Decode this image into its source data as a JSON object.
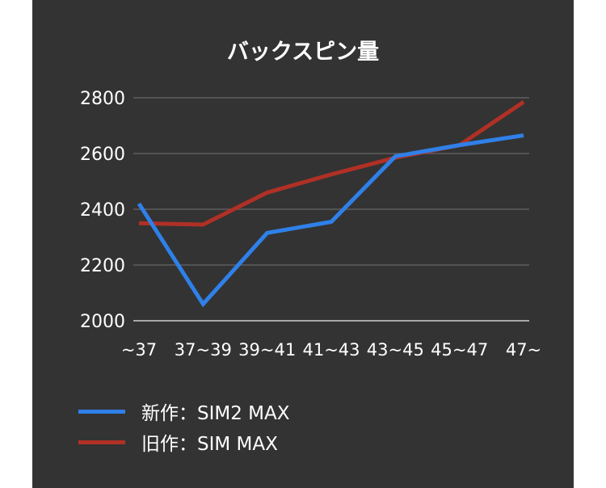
{
  "chart_data": {
    "type": "line",
    "title": "バックスピン量",
    "categories": [
      "~37",
      "37~39",
      "39~41",
      "41~43",
      "43~45",
      "45~47",
      "47~"
    ],
    "ylim": [
      2000,
      2800
    ],
    "yticks": [
      "2000",
      "2200",
      "2400",
      "2600",
      "2800"
    ],
    "grid": true,
    "legend_position": "bottom-left",
    "series": [
      {
        "name": "新作：SIM2 MAX",
        "color": "#2f80e8",
        "values": [
          2420,
          2060,
          2315,
          2355,
          2590,
          2630,
          2665
        ]
      },
      {
        "name": "旧作：SIM MAX",
        "color": "#b03025",
        "values": [
          2350,
          2345,
          2460,
          2525,
          2585,
          2630,
          2785
        ]
      }
    ]
  }
}
